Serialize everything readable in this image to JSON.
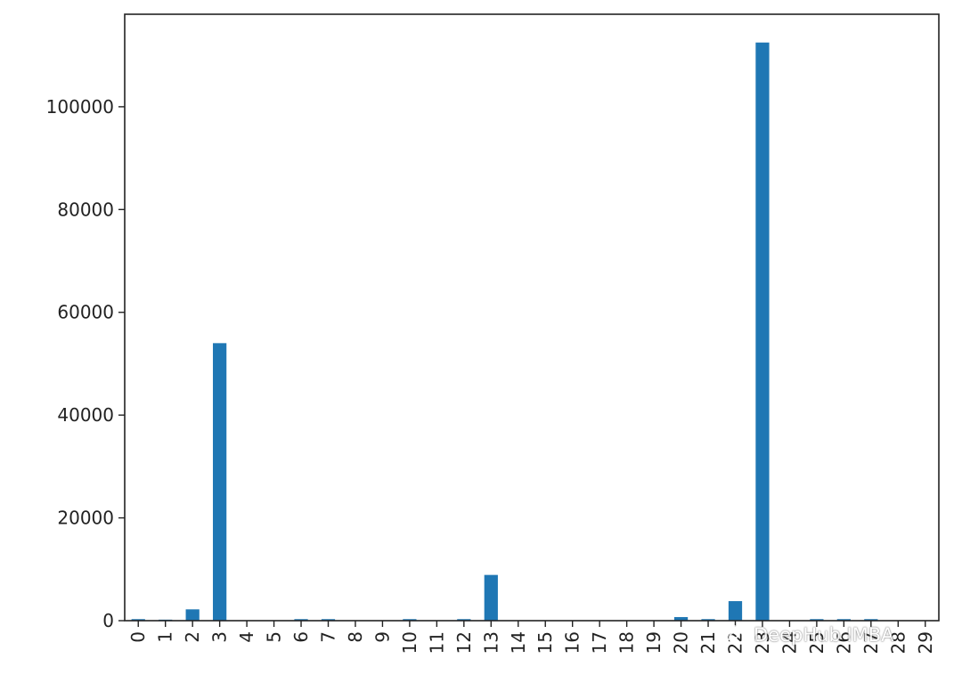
{
  "chart_data": {
    "type": "bar",
    "title": "",
    "xlabel": "",
    "ylabel": "",
    "categories": [
      "0",
      "1",
      "2",
      "3",
      "4",
      "5",
      "6",
      "7",
      "8",
      "9",
      "10",
      "11",
      "12",
      "13",
      "14",
      "15",
      "16",
      "17",
      "18",
      "19",
      "20",
      "21",
      "22",
      "23",
      "24",
      "25",
      "26",
      "27",
      "28",
      "29"
    ],
    "values": [
      300,
      200,
      2200,
      54000,
      0,
      0,
      300,
      300,
      0,
      0,
      300,
      0,
      300,
      8900,
      0,
      0,
      0,
      0,
      0,
      0,
      700,
      300,
      3800,
      112500,
      0,
      300,
      300,
      300,
      0,
      0
    ],
    "ylim": [
      0,
      118000
    ],
    "yticks": [
      0,
      20000,
      40000,
      60000,
      80000,
      100000
    ],
    "ytick_labels": [
      "0",
      "20000",
      "40000",
      "60000",
      "80000",
      "100000"
    ],
    "grid": false,
    "bar_color": "#1f77b4"
  },
  "watermark": {
    "text": "DeepHub IMBA",
    "icon": "wechat-icon"
  }
}
